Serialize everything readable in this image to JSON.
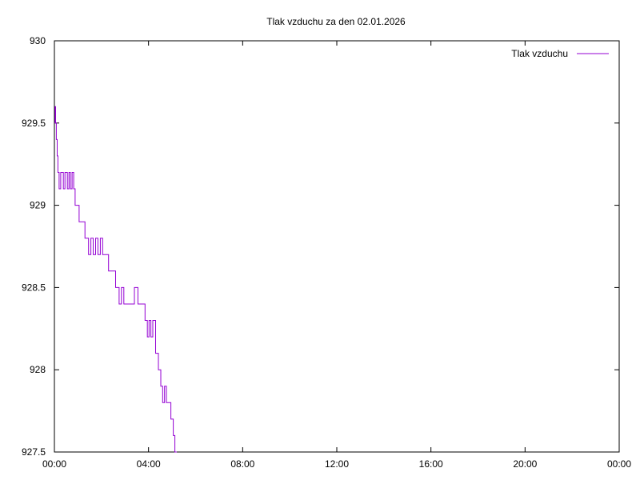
{
  "chart_data": {
    "type": "line",
    "title": "Tlak vzduchu za den 02.01.2026",
    "xlabel": "",
    "ylabel": "",
    "xlim": [
      0,
      24
    ],
    "ylim": [
      927.5,
      930
    ],
    "x_ticks": [
      0,
      4,
      8,
      12,
      16,
      20,
      24
    ],
    "x_tick_labels": [
      "00:00",
      "04:00",
      "08:00",
      "12:00",
      "16:00",
      "20:00",
      "00:00"
    ],
    "y_ticks": [
      927.5,
      928,
      928.5,
      929,
      929.5,
      930
    ],
    "y_tick_labels": [
      "927.5",
      "928",
      "928.5",
      "929",
      "929.5",
      "930"
    ],
    "grid": false,
    "legend_position": "top-right",
    "series": [
      {
        "name": "Tlak vzduchu",
        "color": "#9400d3",
        "x": [
          0.0,
          0.03,
          0.05,
          0.08,
          0.12,
          0.15,
          0.2,
          0.27,
          0.32,
          0.38,
          0.45,
          0.55,
          0.62,
          0.68,
          0.75,
          0.82,
          0.88,
          0.95,
          1.05,
          1.15,
          1.3,
          1.45,
          1.55,
          1.65,
          1.75,
          1.85,
          1.95,
          2.05,
          2.15,
          2.3,
          2.45,
          2.6,
          2.75,
          2.85,
          2.95,
          3.05,
          3.2,
          3.4,
          3.55,
          3.7,
          3.85,
          3.95,
          4.02,
          4.1,
          4.18,
          4.3,
          4.42,
          4.52,
          4.6,
          4.68,
          4.76,
          4.85,
          4.95,
          5.05,
          5.12,
          5.2
        ],
        "y": [
          929.5,
          929.6,
          929.5,
          929.4,
          929.3,
          929.2,
          929.1,
          929.2,
          929.2,
          929.1,
          929.2,
          929.1,
          929.2,
          929.1,
          929.2,
          929.1,
          929.0,
          929.0,
          928.9,
          928.9,
          928.8,
          928.7,
          928.8,
          928.7,
          928.8,
          928.7,
          928.8,
          928.7,
          928.7,
          928.6,
          928.6,
          928.5,
          928.4,
          928.5,
          928.4,
          928.4,
          928.4,
          928.5,
          928.4,
          928.4,
          928.3,
          928.2,
          928.3,
          928.2,
          928.3,
          928.1,
          928.0,
          927.9,
          927.8,
          927.9,
          927.8,
          927.8,
          927.7,
          927.6,
          927.5,
          927.5
        ]
      }
    ]
  }
}
